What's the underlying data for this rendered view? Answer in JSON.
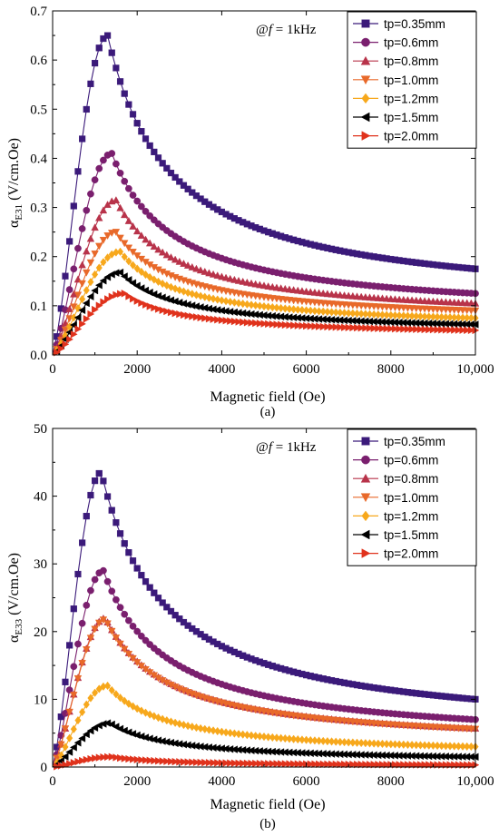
{
  "chart_data": [
    {
      "type": "scatter",
      "panel_label": "(a)",
      "annotation_prefix": "@",
      "annotation_var": "f",
      "annotation_rest": " = 1kHz",
      "ylabel_main": "α",
      "ylabel_sub": "E31",
      "ylabel_unit": " (V/cm.Oe)",
      "xlabel": "Magnetic field (Oe)",
      "xlim": [
        0,
        10000
      ],
      "ylim": [
        0,
        0.7
      ],
      "xticks": [
        0,
        2000,
        4000,
        6000,
        8000,
        10000
      ],
      "xtick_labels": [
        "0",
        "2000",
        "4000",
        "6000",
        "8000",
        "10,000"
      ],
      "yticks": [
        0,
        0.1,
        0.2,
        0.3,
        0.4,
        0.5,
        0.6,
        0.7
      ],
      "ytick_labels": [
        "0.0",
        "0.1",
        "0.2",
        "0.3",
        "0.4",
        "0.5",
        "0.6",
        "0.7"
      ],
      "legend_position": "top-right",
      "grid": false,
      "series": [
        {
          "name": "tp=0.35mm",
          "color": "#3b1a7a",
          "marker": "square",
          "peak_x": 1300,
          "peak_y": 0.65,
          "end_y": 0.175,
          "shoulder": 0.17
        },
        {
          "name": "tp=0.6mm",
          "color": "#7a1f6e",
          "marker": "circle",
          "peak_x": 1400,
          "peak_y": 0.41,
          "end_y": 0.125,
          "shoulder": 0.17
        },
        {
          "name": "tp=0.8mm",
          "color": "#b8334a",
          "marker": "triangle-up",
          "peak_x": 1500,
          "peak_y": 0.315,
          "end_y": 0.105,
          "shoulder": 0.17
        },
        {
          "name": "tp=1.0mm",
          "color": "#e8692a",
          "marker": "triangle-down",
          "peak_x": 1500,
          "peak_y": 0.25,
          "end_y": 0.09,
          "shoulder": 0.17
        },
        {
          "name": "tp=1.2mm",
          "color": "#f7a81c",
          "marker": "diamond",
          "peak_x": 1600,
          "peak_y": 0.21,
          "end_y": 0.075,
          "shoulder": 0.17
        },
        {
          "name": "tp=1.5mm",
          "color": "#000000",
          "marker": "triangle-left",
          "peak_x": 1600,
          "peak_y": 0.168,
          "end_y": 0.062,
          "shoulder": 0.17
        },
        {
          "name": "tp=2.0mm",
          "color": "#e0321c",
          "marker": "triangle-right",
          "peak_x": 1700,
          "peak_y": 0.125,
          "end_y": 0.05,
          "shoulder": 0.17
        }
      ]
    },
    {
      "type": "scatter",
      "panel_label": "(b)",
      "annotation_prefix": "@",
      "annotation_var": "f",
      "annotation_rest": " = 1kHz",
      "ylabel_main": "α",
      "ylabel_sub": "E33",
      "ylabel_unit": " (V/cm.Oe)",
      "xlabel": "Magnetic field (Oe)",
      "xlim": [
        0,
        10000
      ],
      "ylim": [
        0,
        50
      ],
      "xticks": [
        0,
        2000,
        4000,
        6000,
        8000,
        10000
      ],
      "xtick_labels": [
        "0",
        "2000",
        "4000",
        "6000",
        "8000",
        "10,000"
      ],
      "yticks": [
        0,
        10,
        20,
        30,
        40,
        50
      ],
      "ytick_labels": [
        "0",
        "10",
        "20",
        "30",
        "40",
        "50"
      ],
      "legend_position": "top-right",
      "grid": false,
      "series": [
        {
          "name": "tp=0.35mm",
          "color": "#3b1a7a",
          "marker": "square",
          "peak_x": 1150,
          "peak_y": 43.5,
          "end_y": 10.0,
          "shoulder": 0.17
        },
        {
          "name": "tp=0.6mm",
          "color": "#7a1f6e",
          "marker": "circle",
          "peak_x": 1200,
          "peak_y": 29.0,
          "end_y": 7.0,
          "shoulder": 0.17
        },
        {
          "name": "tp=0.8mm",
          "color": "#b8334a",
          "marker": "triangle-up",
          "peak_x": 1250,
          "peak_y": 22.0,
          "end_y": 5.7,
          "shoulder": 0.17
        },
        {
          "name": "tp=1.0mm",
          "color": "#e8692a",
          "marker": "triangle-down",
          "peak_x": 1250,
          "peak_y": 21.8,
          "end_y": 5.6,
          "shoulder": 0.17
        },
        {
          "name": "tp=1.2mm",
          "color": "#f7a81c",
          "marker": "diamond",
          "peak_x": 1300,
          "peak_y": 12.0,
          "end_y": 3.0,
          "shoulder": 0.17
        },
        {
          "name": "tp=1.5mm",
          "color": "#000000",
          "marker": "triangle-left",
          "peak_x": 1350,
          "peak_y": 6.5,
          "end_y": 1.5,
          "shoulder": 0.17
        },
        {
          "name": "tp=2.0mm",
          "color": "#e0321c",
          "marker": "triangle-right",
          "peak_x": 1400,
          "peak_y": 1.5,
          "end_y": 0.3,
          "shoulder": 0.17
        }
      ]
    }
  ]
}
